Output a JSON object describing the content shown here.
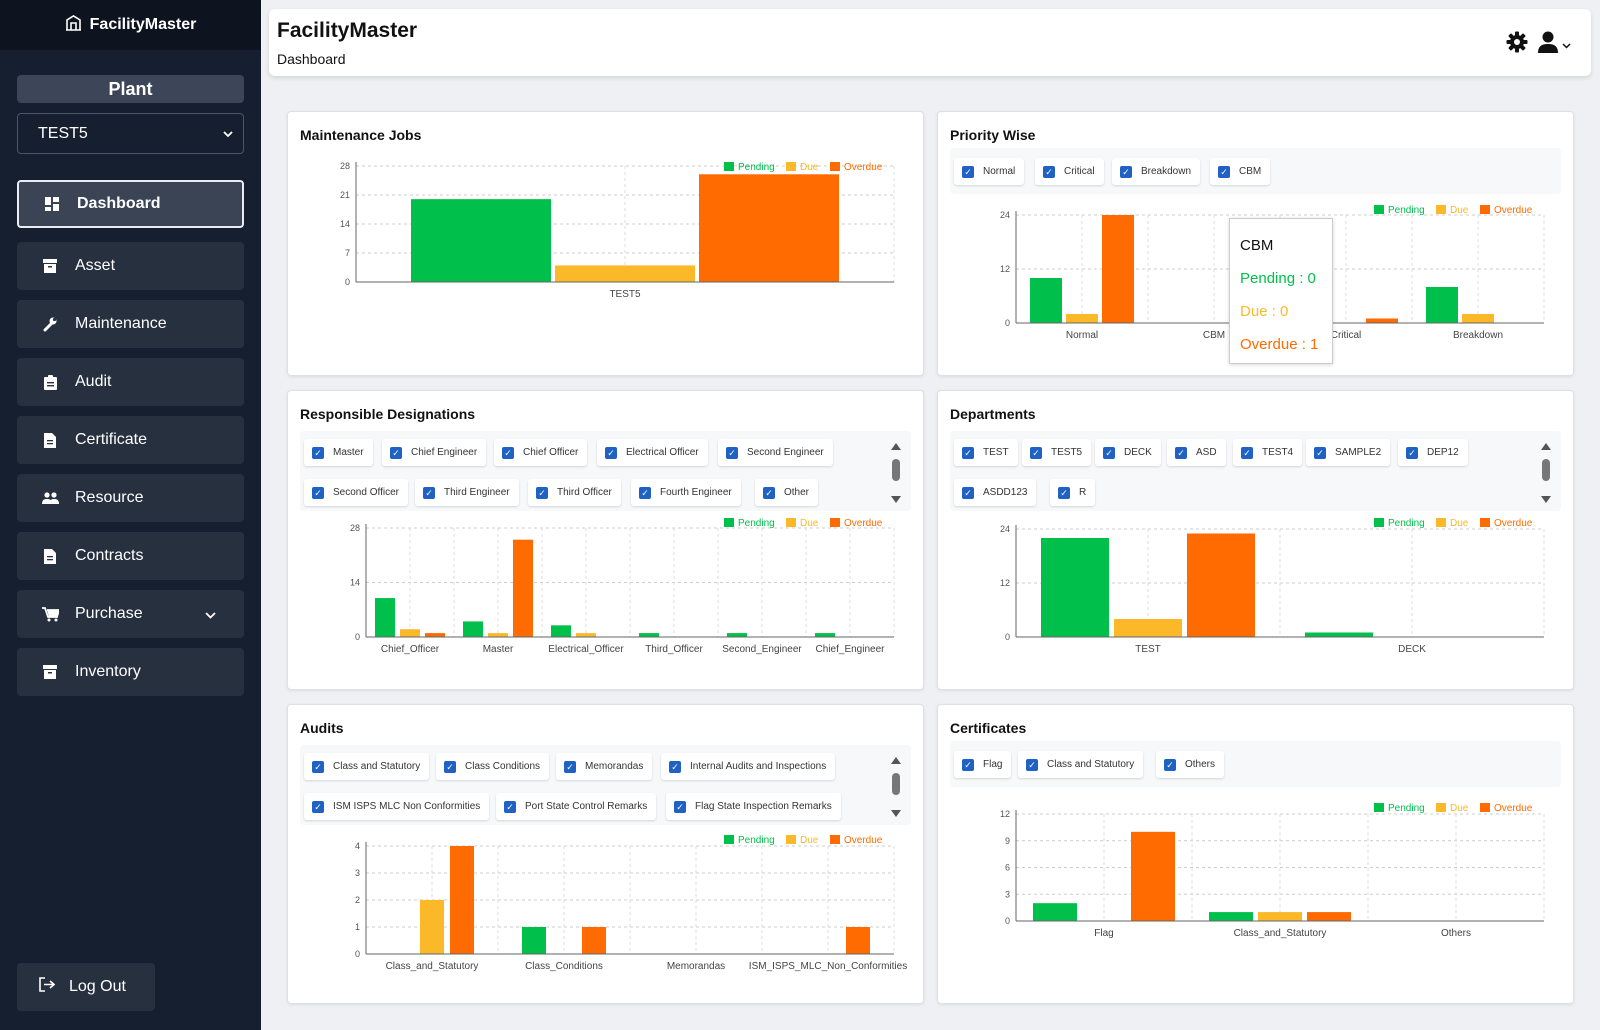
{
  "app": {
    "name": "FacilityMaster",
    "page_title": "FacilityMaster",
    "page_subtitle": "Dashboard"
  },
  "sidebar": {
    "plant_label": "Plant",
    "plant_value": "TEST5",
    "items": [
      {
        "label": "Dashboard",
        "icon": "dashboard-icon"
      },
      {
        "label": "Asset",
        "icon": "archive-icon"
      },
      {
        "label": "Maintenance",
        "icon": "wrench-icon"
      },
      {
        "label": "Audit",
        "icon": "clipboard-icon"
      },
      {
        "label": "Certificate",
        "icon": "document-icon"
      },
      {
        "label": "Resource",
        "icon": "users-icon"
      },
      {
        "label": "Contracts",
        "icon": "document-icon"
      },
      {
        "label": "Purchase",
        "icon": "cart-icon"
      },
      {
        "label": "Inventory",
        "icon": "archive-icon"
      }
    ],
    "logout": "Log Out"
  },
  "colors": {
    "pending": "#00c04b",
    "due": "#fbb829",
    "overdue": "#ff6b00",
    "hover": "#cccccc"
  },
  "legend": {
    "pending": "Pending",
    "due": "Due",
    "overdue": "Overdue"
  },
  "cards": {
    "maintenance": "Maintenance Jobs",
    "priority": "Priority Wise",
    "designations": "Responsible Designations",
    "departments": "Departments",
    "audits": "Audits",
    "certificates": "Certificates"
  },
  "filters": {
    "priority": [
      "Normal",
      "Critical",
      "Breakdown",
      "CBM"
    ],
    "designations": [
      "Master",
      "Chief Engineer",
      "Chief Officer",
      "Electrical Officer",
      "Second Engineer",
      "Second Officer",
      "Third Engineer",
      "Third Officer",
      "Fourth Engineer",
      "Other"
    ],
    "departments": [
      "TEST",
      "TEST5",
      "DECK",
      "ASD",
      "TEST4",
      "SAMPLE2",
      "DEP12",
      "ASDD123",
      "R"
    ],
    "audits": [
      "Class and Statutory",
      "Class Conditions",
      "Memorandas",
      "Internal Audits and Inspections",
      "ISM ISPS MLC Non Conformities",
      "Port State Control Remarks",
      "Flag State Inspection Remarks"
    ],
    "certificates": [
      "Flag",
      "Class and Statutory",
      "Others"
    ]
  },
  "tooltip": {
    "title": "CBM",
    "pending": "Pending : 0",
    "due": "Due : 0",
    "overdue": "Overdue : 1"
  },
  "chart_data": [
    {
      "id": "maintenance",
      "type": "bar",
      "categories": [
        "TEST5"
      ],
      "series": [
        {
          "name": "Pending",
          "values": [
            20
          ]
        },
        {
          "name": "Due",
          "values": [
            4
          ]
        },
        {
          "name": "Overdue",
          "values": [
            26
          ]
        }
      ],
      "ylim": [
        0,
        28
      ],
      "yticks": [
        0,
        7,
        14,
        21,
        28
      ]
    },
    {
      "id": "priority",
      "type": "bar",
      "categories": [
        "Normal",
        "CBM",
        "Critical",
        "Breakdown"
      ],
      "series": [
        {
          "name": "Pending",
          "values": [
            10,
            0,
            0,
            8
          ]
        },
        {
          "name": "Due",
          "values": [
            2,
            0,
            0,
            2
          ]
        },
        {
          "name": "Overdue",
          "values": [
            24,
            1,
            1,
            0
          ]
        }
      ],
      "ylim": [
        0,
        24
      ],
      "yticks": [
        0,
        12,
        24
      ]
    },
    {
      "id": "designations",
      "type": "bar",
      "categories": [
        "Chief_Officer",
        "Master",
        "Electrical_Officer",
        "Third_Officer",
        "Second_Engineer",
        "Chief_Engineer"
      ],
      "series": [
        {
          "name": "Pending",
          "values": [
            10,
            4,
            3,
            1,
            1,
            1
          ]
        },
        {
          "name": "Due",
          "values": [
            2,
            1,
            1,
            0,
            0,
            0
          ]
        },
        {
          "name": "Overdue",
          "values": [
            1,
            25,
            0,
            0,
            0,
            0
          ]
        }
      ],
      "ylim": [
        0,
        28
      ],
      "yticks": [
        0,
        14,
        28
      ]
    },
    {
      "id": "departments",
      "type": "bar",
      "categories": [
        "TEST",
        "DECK"
      ],
      "series": [
        {
          "name": "Pending",
          "values": [
            22,
            1
          ]
        },
        {
          "name": "Due",
          "values": [
            4,
            0
          ]
        },
        {
          "name": "Overdue",
          "values": [
            23,
            0
          ]
        }
      ],
      "ylim": [
        0,
        24
      ],
      "yticks": [
        0,
        12,
        24
      ]
    },
    {
      "id": "audits",
      "type": "bar",
      "categories": [
        "Class_and_Statutory",
        "Class_Conditions",
        "Memorandas",
        "ISM_ISPS_MLC_Non_Conformities"
      ],
      "series": [
        {
          "name": "Pending",
          "values": [
            0,
            1,
            0,
            0
          ]
        },
        {
          "name": "Due",
          "values": [
            2,
            0,
            0,
            0
          ]
        },
        {
          "name": "Overdue",
          "values": [
            4,
            1,
            0,
            1
          ]
        }
      ],
      "ylim": [
        0,
        4
      ],
      "yticks": [
        0,
        1,
        2,
        3,
        4
      ]
    },
    {
      "id": "certificates",
      "type": "bar",
      "categories": [
        "Flag",
        "Class_and_Statutory",
        "Others"
      ],
      "series": [
        {
          "name": "Pending",
          "values": [
            2,
            1,
            0
          ]
        },
        {
          "name": "Due",
          "values": [
            0,
            1,
            0
          ]
        },
        {
          "name": "Overdue",
          "values": [
            10,
            1,
            0
          ]
        }
      ],
      "ylim": [
        0,
        12
      ],
      "yticks": [
        0,
        3,
        6,
        9,
        12
      ]
    }
  ]
}
